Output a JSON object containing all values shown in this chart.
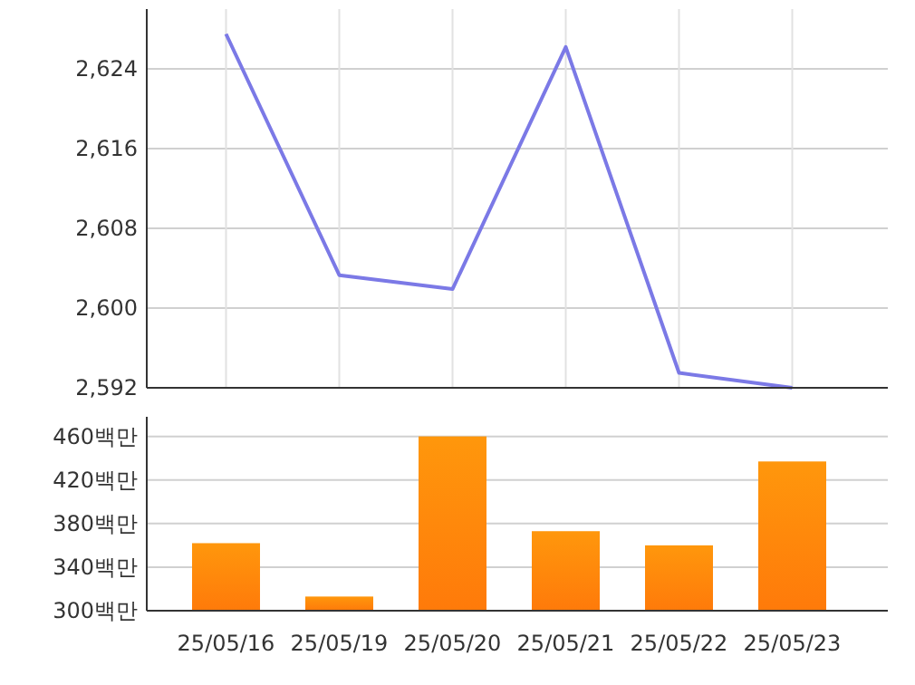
{
  "chart_data": [
    {
      "type": "line",
      "categories": [
        null,
        null,
        null,
        null,
        null,
        null
      ],
      "series": [
        {
          "color": "#7b79e6",
          "values": [
            2627.5,
            2603.3,
            2601.9,
            2626.2,
            2593.5,
            2592
          ]
        }
      ],
      "ylim": [
        2592,
        2630
      ],
      "yticks": [
        {
          "value": 2592,
          "label": "2,592"
        },
        {
          "value": 2600,
          "label": "2,600"
        },
        {
          "value": 2608,
          "label": "2,608"
        },
        {
          "value": 2616,
          "label": "2,616"
        },
        {
          "value": 2624,
          "label": "2,624"
        }
      ],
      "grid": true,
      "tick_labels": "y"
    },
    {
      "type": "bar",
      "categories": [
        "25/05/16",
        "25/05/19",
        "25/05/20",
        "25/05/21",
        "25/05/22",
        "25/05/23"
      ],
      "series": [
        {
          "color": "#ff7a0a",
          "values": [
            362,
            313,
            460,
            373,
            360,
            437
          ]
        }
      ],
      "ylim": [
        300,
        478
      ],
      "yticks": [
        {
          "value": 300,
          "label": "300백만"
        },
        {
          "value": 340,
          "label": "340백만"
        },
        {
          "value": 380,
          "label": "380백만"
        },
        {
          "value": 420,
          "label": "420백만"
        },
        {
          "value": 460,
          "label": "460백만"
        }
      ],
      "grid": "y"
    }
  ]
}
